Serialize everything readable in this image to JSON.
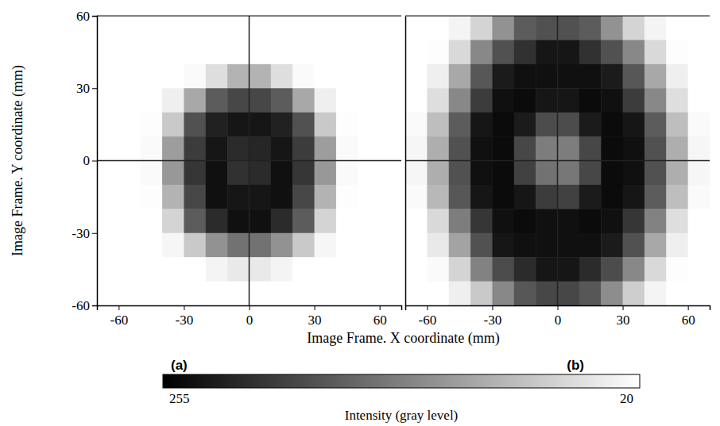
{
  "chart_data": {
    "type": "heatmap",
    "x_label": "Image Frame. X coordinate (mm)",
    "y_label": "Image Frame. Y coordinate (mm)",
    "ylim": [
      -60,
      60
    ],
    "yticks": [
      60,
      30,
      0,
      -30,
      -60
    ],
    "panels": [
      {
        "label": "(a)",
        "xlim": [
          -70,
          70
        ],
        "xticks": [
          -60,
          -30,
          0,
          30,
          60
        ],
        "x": [
          -65,
          -55,
          -45,
          -35,
          -25,
          -15,
          -5,
          5,
          15,
          25,
          35,
          45,
          55,
          65
        ],
        "y": [
          55,
          45,
          35,
          25,
          15,
          5,
          -5,
          -15,
          -25,
          -35,
          -45,
          -55
        ],
        "cells": [
          [
            20,
            20,
            20,
            20,
            20,
            20,
            20,
            20,
            20,
            20,
            20,
            20,
            20,
            20
          ],
          [
            20,
            20,
            20,
            20,
            20,
            20,
            20,
            20,
            20,
            20,
            20,
            20,
            20,
            20
          ],
          [
            20,
            20,
            20,
            20,
            25,
            50,
            90,
            90,
            50,
            25,
            20,
            20,
            20,
            20
          ],
          [
            20,
            20,
            20,
            35,
            100,
            170,
            190,
            190,
            170,
            100,
            35,
            20,
            20,
            20
          ],
          [
            20,
            20,
            22,
            70,
            180,
            225,
            235,
            235,
            225,
            180,
            70,
            22,
            20,
            20
          ],
          [
            20,
            20,
            25,
            110,
            200,
            235,
            215,
            220,
            235,
            200,
            110,
            25,
            20,
            20
          ],
          [
            20,
            20,
            25,
            115,
            205,
            240,
            210,
            215,
            240,
            205,
            115,
            25,
            20,
            20
          ],
          [
            20,
            20,
            22,
            90,
            190,
            240,
            235,
            235,
            240,
            190,
            90,
            22,
            20,
            20
          ],
          [
            20,
            20,
            20,
            60,
            170,
            215,
            240,
            240,
            215,
            170,
            60,
            20,
            20,
            20
          ],
          [
            20,
            20,
            20,
            28,
            70,
            120,
            150,
            150,
            120,
            70,
            28,
            20,
            20,
            20
          ],
          [
            20,
            20,
            20,
            20,
            20,
            30,
            40,
            40,
            30,
            20,
            20,
            20,
            20,
            20
          ],
          [
            20,
            20,
            20,
            20,
            20,
            20,
            20,
            20,
            20,
            20,
            20,
            20,
            20,
            20
          ]
        ]
      },
      {
        "label": "(b)",
        "xlim": [
          -70,
          70
        ],
        "xticks": [
          -60,
          -30,
          0,
          30,
          60
        ],
        "x": [
          -65,
          -55,
          -45,
          -35,
          -25,
          -15,
          -5,
          5,
          15,
          25,
          35,
          45,
          55,
          65
        ],
        "y": [
          55,
          45,
          35,
          25,
          15,
          5,
          -5,
          -15,
          -25,
          -35,
          -45,
          -55
        ],
        "cells": [
          [
            20,
            20,
            30,
            60,
            120,
            170,
            180,
            180,
            170,
            120,
            60,
            30,
            20,
            20
          ],
          [
            20,
            22,
            55,
            130,
            180,
            210,
            235,
            235,
            210,
            180,
            130,
            55,
            22,
            20
          ],
          [
            20,
            35,
            100,
            175,
            230,
            240,
            240,
            240,
            240,
            230,
            175,
            100,
            35,
            20
          ],
          [
            20,
            50,
            130,
            200,
            240,
            245,
            235,
            235,
            245,
            240,
            200,
            130,
            50,
            20
          ],
          [
            25,
            80,
            170,
            235,
            245,
            230,
            185,
            185,
            230,
            245,
            235,
            170,
            80,
            25
          ],
          [
            28,
            95,
            180,
            240,
            245,
            190,
            140,
            140,
            190,
            245,
            240,
            180,
            95,
            28
          ],
          [
            28,
            95,
            180,
            240,
            245,
            195,
            150,
            145,
            190,
            245,
            240,
            180,
            95,
            28
          ],
          [
            25,
            85,
            175,
            235,
            245,
            235,
            200,
            195,
            230,
            245,
            235,
            170,
            80,
            25
          ],
          [
            20,
            55,
            140,
            205,
            240,
            245,
            240,
            240,
            245,
            240,
            205,
            135,
            50,
            20
          ],
          [
            20,
            40,
            105,
            180,
            235,
            240,
            240,
            240,
            240,
            230,
            180,
            100,
            35,
            20
          ],
          [
            20,
            25,
            60,
            135,
            185,
            215,
            235,
            235,
            215,
            185,
            130,
            55,
            22,
            20
          ],
          [
            20,
            20,
            35,
            70,
            130,
            175,
            190,
            190,
            175,
            125,
            65,
            30,
            20,
            20
          ]
        ]
      }
    ],
    "colorbar": {
      "label": "Intensity (gray level)",
      "range": [
        255,
        20
      ],
      "ticks": [
        255,
        20
      ]
    }
  }
}
